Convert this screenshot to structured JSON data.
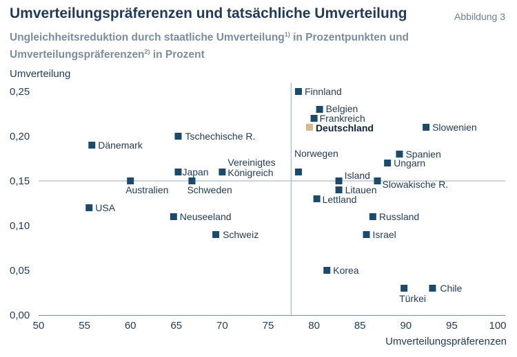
{
  "header": {
    "title": "Umverteilungspräferenzen und tatsächliche Umverteilung",
    "figure_label": "Abbildung 3",
    "subtitle_part1": "Ungleichheitsreduktion durch staatliche Umverteilung",
    "subtitle_sup1": "1)",
    "subtitle_part2": " in Prozentpunkten und Umverteilungspräferenzen",
    "subtitle_sup2": "2)",
    "subtitle_part3": " in Prozent"
  },
  "colors": {
    "marker": "#1a4a6e",
    "highlight": "#d9b98c",
    "grid": "#9aa8b5"
  },
  "chart_data": {
    "type": "scatter",
    "xlabel": "Umverteilungspräferenzen",
    "ylabel": "Umverteilung",
    "xlim": [
      50,
      100
    ],
    "ylim": [
      0,
      0.25
    ],
    "x_ticks": [
      "50",
      "55",
      "60",
      "65",
      "70",
      "75",
      "80",
      "85",
      "90",
      "95",
      "100"
    ],
    "y_ticks": [
      "0,00",
      "0,05",
      "0,10",
      "0,15",
      "0,20",
      "0,25"
    ],
    "reference_lines": {
      "x": 77.5,
      "y": 0.15
    },
    "points": [
      {
        "label": "Finnland",
        "x": 78.3,
        "y": 0.25
      },
      {
        "label": "Belgien",
        "x": 80.6,
        "y": 0.23
      },
      {
        "label": "Frankreich",
        "x": 80.0,
        "y": 0.22
      },
      {
        "label": "Deutschland",
        "x": 79.5,
        "y": 0.21,
        "highlight": true
      },
      {
        "label": "Slowenien",
        "x": 92.2,
        "y": 0.21
      },
      {
        "label": "Tschechische R.",
        "x": 65.2,
        "y": 0.2
      },
      {
        "label": "Dänemark",
        "x": 55.8,
        "y": 0.19
      },
      {
        "label": "Spanien",
        "x": 89.3,
        "y": 0.18
      },
      {
        "label": "Ungarn",
        "x": 88.0,
        "y": 0.17
      },
      {
        "label": "Japan",
        "x": 65.2,
        "y": 0.16
      },
      {
        "label": "Vereinigtes Königreich",
        "x": 70.0,
        "y": 0.16
      },
      {
        "label": "Norwegen",
        "x": 78.3,
        "y": 0.16
      },
      {
        "label": "Australien",
        "x": 60.0,
        "y": 0.15
      },
      {
        "label": "Schweden",
        "x": 66.7,
        "y": 0.15
      },
      {
        "label": "Island",
        "x": 82.7,
        "y": 0.15
      },
      {
        "label": "Slowakische R.",
        "x": 86.9,
        "y": 0.15
      },
      {
        "label": "Litauen",
        "x": 82.7,
        "y": 0.14
      },
      {
        "label": "Lettland",
        "x": 80.3,
        "y": 0.13
      },
      {
        "label": "USA",
        "x": 55.5,
        "y": 0.12
      },
      {
        "label": "Neuseeland",
        "x": 64.7,
        "y": 0.11
      },
      {
        "label": "Russland",
        "x": 86.4,
        "y": 0.11
      },
      {
        "label": "Schweiz",
        "x": 69.3,
        "y": 0.09
      },
      {
        "label": "Israel",
        "x": 85.7,
        "y": 0.09
      },
      {
        "label": "Korea",
        "x": 81.4,
        "y": 0.05
      },
      {
        "label": "Türkei",
        "x": 89.8,
        "y": 0.03
      },
      {
        "label": "Chile",
        "x": 92.9,
        "y": 0.03
      }
    ]
  }
}
